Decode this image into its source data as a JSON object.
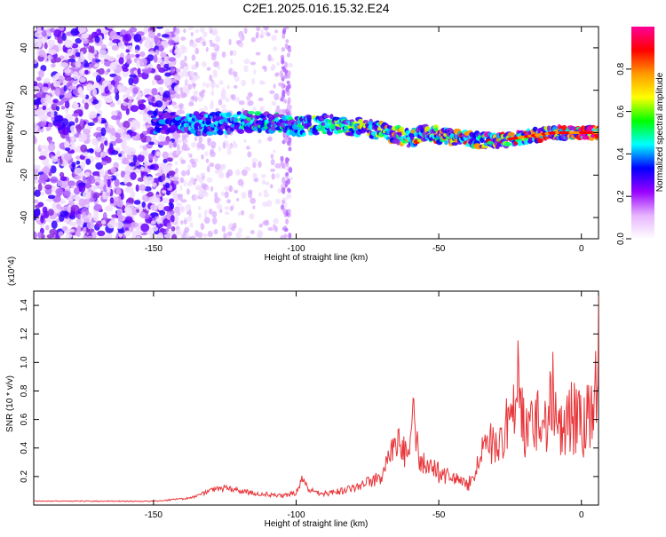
{
  "title": "C2E1.2025.016.15.32.E24",
  "chart_data": [
    {
      "type": "heatmap",
      "xlabel": "Height of straight line (km)",
      "ylabel": "Frequency (Hz)",
      "xlim": [
        -192,
        6
      ],
      "ylim": [
        -50,
        50
      ],
      "x_ticks": [
        -150,
        -100,
        -50,
        0
      ],
      "y_ticks": [
        -40,
        -20,
        0,
        20,
        40
      ],
      "colorbar": {
        "label": "Normalized spectral amplitude",
        "range": [
          0,
          1
        ],
        "ticks": [
          "0.0",
          "0.2",
          "0.4",
          "0.6",
          "0.8"
        ],
        "colors": [
          "#ffffff",
          "#e6b3ff",
          "#9900ff",
          "#0000ff",
          "#00ffff",
          "#00ff00",
          "#ffff00",
          "#ff9900",
          "#ff0000",
          "#ff0099"
        ]
      },
      "ridge": {
        "x": [
          -150,
          -140,
          -130,
          -120,
          -110,
          -100,
          -90,
          -80,
          -70,
          -60,
          -55,
          -50,
          -40,
          -30,
          -20,
          -10,
          0,
          6
        ],
        "frequency": [
          5,
          5,
          4,
          5,
          5,
          3,
          4,
          3,
          1,
          -3,
          0,
          -1,
          -3,
          -4,
          -2,
          0,
          0,
          0
        ]
      }
    },
    {
      "type": "line",
      "xlabel": "Height of straight line (km)",
      "ylabel": "SNR (10 * v/v)",
      "multiplier": "(x10^4)",
      "xlim": [
        -192,
        6
      ],
      "ylim": [
        0,
        1.5
      ],
      "x_ticks": [
        -150,
        -100,
        -50,
        0
      ],
      "y_ticks": [
        0.2,
        0.4,
        0.6,
        0.8,
        1.0,
        1.2,
        1.4
      ],
      "line_color": "#e8363a",
      "series": [
        {
          "x": [
            -192,
            -180,
            -170,
            -160,
            -150,
            -140,
            -135,
            -130,
            -125,
            -120,
            -115,
            -110,
            -105,
            -100,
            -98,
            -95,
            -90,
            -85,
            -80,
            -75,
            -70,
            -67,
            -64,
            -61,
            -59,
            -57,
            -55,
            -52,
            -50,
            -47,
            -45,
            -42,
            -40,
            -37,
            -35,
            -33,
            -30,
            -28,
            -26,
            -24,
            -22,
            -20,
            -18,
            -16,
            -14,
            -12,
            -10,
            -8,
            -6,
            -4,
            -2,
            0,
            2,
            4,
            6
          ],
          "values": [
            0.03,
            0.03,
            0.03,
            0.03,
            0.03,
            0.05,
            0.07,
            0.12,
            0.14,
            0.12,
            0.1,
            0.09,
            0.08,
            0.1,
            0.23,
            0.12,
            0.1,
            0.12,
            0.15,
            0.2,
            0.25,
            0.48,
            0.55,
            0.45,
            0.82,
            0.45,
            0.38,
            0.35,
            0.3,
            0.28,
            0.25,
            0.2,
            0.18,
            0.3,
            0.5,
            0.55,
            0.62,
            0.7,
            0.78,
            0.8,
            1.27,
            0.7,
            0.85,
            0.75,
            0.95,
            0.8,
            1.27,
            0.75,
            0.82,
            0.9,
            0.85,
            0.85,
            0.9,
            0.85,
            1.48
          ]
        }
      ]
    }
  ]
}
